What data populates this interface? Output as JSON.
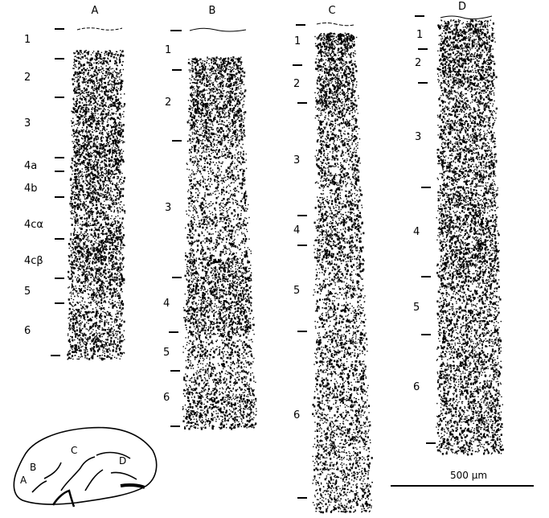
{
  "columns": [
    {
      "key": "A",
      "title": "A",
      "layers": [
        "1",
        "2",
        "3",
        "4a",
        "4b",
        "4cα",
        "4cβ",
        "5",
        "6"
      ]
    },
    {
      "key": "B",
      "title": "B",
      "layers": [
        "1",
        "2",
        "3",
        "4",
        "5",
        "6"
      ]
    },
    {
      "key": "C",
      "title": "C",
      "layers": [
        "1",
        "2",
        "3",
        "4",
        "5",
        "6"
      ]
    },
    {
      "key": "D",
      "title": "D",
      "layers": [
        "1",
        "2",
        "3",
        "4",
        "5",
        "6"
      ]
    }
  ],
  "brain_outline": {
    "labels": [
      "A",
      "B",
      "C",
      "D"
    ]
  },
  "scale_bar": {
    "label": "500 µm"
  },
  "colors": {
    "ink": "#000000",
    "background": "#ffffff"
  }
}
